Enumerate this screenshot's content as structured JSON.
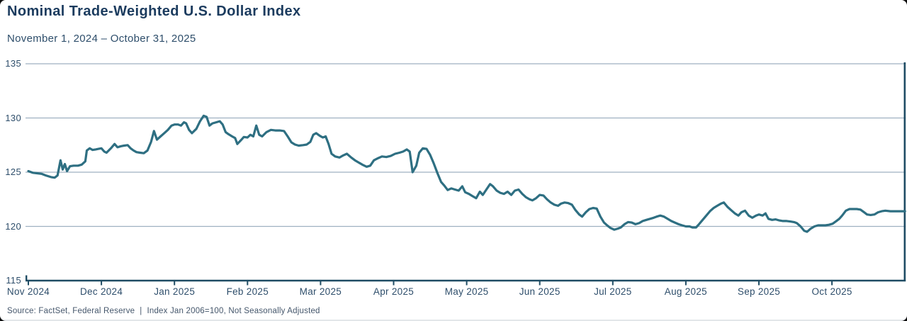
{
  "header": {
    "title": "Nominal Trade-Weighted U.S. Dollar Index",
    "subtitle": "November 1, 2024 – October 31, 2025"
  },
  "footer": {
    "source": "Source: FactSet, Federal Reserve",
    "separator": "|",
    "note": "Index Jan 2006=100, Not Seasonally Adjusted"
  },
  "colors": {
    "line": "#2E6F82",
    "title": "#1B3B5E",
    "axis": "#1F4C64",
    "grid": "#9FB1C1",
    "tick": "#2E4E6B"
  },
  "chart_data": {
    "type": "line",
    "title": "Nominal Trade-Weighted U.S. Dollar Index",
    "subtitle": "November 1, 2024 – October 31, 2025",
    "x_tick_labels": [
      "Nov 2024",
      "Dec 2024",
      "Jan 2025",
      "Feb 2025",
      "Mar 2025",
      "Apr 2025",
      "May 2025",
      "Jun 2025",
      "Jul 2025",
      "Aug 2025",
      "Sep 2025",
      "Oct 2025"
    ],
    "y_ticks": [
      115,
      120,
      125,
      130,
      135
    ],
    "y_axis_baseline": 115,
    "ylim": [
      115,
      135
    ],
    "x_unit": "months since Nov 1, 2024 (0 = Nov 1 2024, 12 = Oct 31 2025)",
    "xlim": [
      0,
      12
    ],
    "grid": "horizontal",
    "legend": "none",
    "series": [
      {
        "name": "Nominal Trade-Weighted U.S. Dollar Index",
        "points": [
          [
            0.0,
            125.1
          ],
          [
            0.06,
            124.95
          ],
          [
            0.12,
            124.9
          ],
          [
            0.18,
            124.85
          ],
          [
            0.24,
            124.7
          ],
          [
            0.31,
            124.55
          ],
          [
            0.36,
            124.5
          ],
          [
            0.4,
            124.7
          ],
          [
            0.44,
            126.1
          ],
          [
            0.47,
            125.25
          ],
          [
            0.5,
            125.75
          ],
          [
            0.53,
            125.1
          ],
          [
            0.57,
            125.55
          ],
          [
            0.62,
            125.6
          ],
          [
            0.68,
            125.6
          ],
          [
            0.73,
            125.7
          ],
          [
            0.78,
            126.0
          ],
          [
            0.8,
            127.0
          ],
          [
            0.84,
            127.2
          ],
          [
            0.88,
            127.05
          ],
          [
            0.92,
            127.1
          ],
          [
            0.96,
            127.15
          ],
          [
            1.0,
            127.2
          ],
          [
            1.04,
            126.9
          ],
          [
            1.07,
            126.8
          ],
          [
            1.1,
            127.0
          ],
          [
            1.13,
            127.2
          ],
          [
            1.18,
            127.6
          ],
          [
            1.22,
            127.3
          ],
          [
            1.27,
            127.4
          ],
          [
            1.31,
            127.45
          ],
          [
            1.36,
            127.5
          ],
          [
            1.4,
            127.2
          ],
          [
            1.44,
            127.0
          ],
          [
            1.48,
            126.85
          ],
          [
            1.53,
            126.8
          ],
          [
            1.58,
            126.75
          ],
          [
            1.63,
            127.0
          ],
          [
            1.68,
            127.8
          ],
          [
            1.72,
            128.8
          ],
          [
            1.76,
            128.0
          ],
          [
            1.81,
            128.3
          ],
          [
            1.86,
            128.6
          ],
          [
            1.91,
            128.9
          ],
          [
            1.96,
            129.3
          ],
          [
            2.0,
            129.4
          ],
          [
            2.05,
            129.4
          ],
          [
            2.09,
            129.3
          ],
          [
            2.13,
            129.6
          ],
          [
            2.16,
            129.5
          ],
          [
            2.2,
            128.9
          ],
          [
            2.24,
            128.6
          ],
          [
            2.3,
            129.0
          ],
          [
            2.35,
            129.7
          ],
          [
            2.4,
            130.2
          ],
          [
            2.44,
            130.1
          ],
          [
            2.48,
            129.3
          ],
          [
            2.52,
            129.5
          ],
          [
            2.57,
            129.6
          ],
          [
            2.62,
            129.7
          ],
          [
            2.66,
            129.4
          ],
          [
            2.7,
            128.7
          ],
          [
            2.74,
            128.5
          ],
          [
            2.79,
            128.3
          ],
          [
            2.83,
            128.15
          ],
          [
            2.86,
            127.6
          ],
          [
            2.91,
            127.95
          ],
          [
            2.95,
            128.25
          ],
          [
            3.0,
            128.2
          ],
          [
            3.04,
            128.45
          ],
          [
            3.08,
            128.3
          ],
          [
            3.12,
            129.3
          ],
          [
            3.16,
            128.45
          ],
          [
            3.2,
            128.3
          ],
          [
            3.26,
            128.7
          ],
          [
            3.32,
            128.9
          ],
          [
            3.38,
            128.85
          ],
          [
            3.44,
            128.85
          ],
          [
            3.5,
            128.8
          ],
          [
            3.55,
            128.3
          ],
          [
            3.6,
            127.75
          ],
          [
            3.65,
            127.55
          ],
          [
            3.7,
            127.45
          ],
          [
            3.76,
            127.5
          ],
          [
            3.81,
            127.55
          ],
          [
            3.86,
            127.8
          ],
          [
            3.9,
            128.45
          ],
          [
            3.94,
            128.6
          ],
          [
            3.99,
            128.35
          ],
          [
            4.03,
            128.2
          ],
          [
            4.07,
            128.3
          ],
          [
            4.11,
            127.6
          ],
          [
            4.15,
            126.7
          ],
          [
            4.2,
            126.45
          ],
          [
            4.26,
            126.35
          ],
          [
            4.31,
            126.55
          ],
          [
            4.36,
            126.7
          ],
          [
            4.42,
            126.35
          ],
          [
            4.47,
            126.1
          ],
          [
            4.52,
            125.9
          ],
          [
            4.57,
            125.7
          ],
          [
            4.63,
            125.5
          ],
          [
            4.68,
            125.6
          ],
          [
            4.73,
            126.1
          ],
          [
            4.79,
            126.3
          ],
          [
            4.84,
            126.45
          ],
          [
            4.9,
            126.4
          ],
          [
            4.96,
            126.5
          ],
          [
            5.02,
            126.7
          ],
          [
            5.08,
            126.8
          ],
          [
            5.13,
            126.9
          ],
          [
            5.18,
            127.1
          ],
          [
            5.22,
            126.9
          ],
          [
            5.26,
            125.0
          ],
          [
            5.31,
            125.6
          ],
          [
            5.35,
            126.8
          ],
          [
            5.4,
            127.2
          ],
          [
            5.45,
            127.15
          ],
          [
            5.5,
            126.6
          ],
          [
            5.55,
            125.8
          ],
          [
            5.6,
            124.9
          ],
          [
            5.65,
            124.1
          ],
          [
            5.69,
            123.8
          ],
          [
            5.74,
            123.35
          ],
          [
            5.79,
            123.5
          ],
          [
            5.84,
            123.4
          ],
          [
            5.89,
            123.3
          ],
          [
            5.94,
            123.7
          ],
          [
            5.98,
            123.15
          ],
          [
            6.03,
            123.0
          ],
          [
            6.08,
            122.8
          ],
          [
            6.13,
            122.6
          ],
          [
            6.18,
            123.2
          ],
          [
            6.22,
            122.9
          ],
          [
            6.27,
            123.4
          ],
          [
            6.32,
            123.9
          ],
          [
            6.36,
            123.7
          ],
          [
            6.41,
            123.3
          ],
          [
            6.46,
            123.1
          ],
          [
            6.51,
            123.0
          ],
          [
            6.56,
            123.2
          ],
          [
            6.61,
            122.9
          ],
          [
            6.66,
            123.3
          ],
          [
            6.71,
            123.4
          ],
          [
            6.76,
            123.0
          ],
          [
            6.81,
            122.7
          ],
          [
            6.86,
            122.5
          ],
          [
            6.9,
            122.4
          ],
          [
            6.95,
            122.6
          ],
          [
            7.0,
            122.9
          ],
          [
            7.05,
            122.85
          ],
          [
            7.1,
            122.5
          ],
          [
            7.15,
            122.2
          ],
          [
            7.2,
            122.0
          ],
          [
            7.25,
            121.9
          ],
          [
            7.29,
            122.1
          ],
          [
            7.34,
            122.2
          ],
          [
            7.39,
            122.15
          ],
          [
            7.44,
            122.0
          ],
          [
            7.49,
            121.5
          ],
          [
            7.54,
            121.1
          ],
          [
            7.58,
            120.9
          ],
          [
            7.63,
            121.3
          ],
          [
            7.68,
            121.6
          ],
          [
            7.73,
            121.7
          ],
          [
            7.78,
            121.65
          ],
          [
            7.83,
            120.9
          ],
          [
            7.88,
            120.35
          ],
          [
            7.93,
            120.05
          ],
          [
            7.97,
            119.85
          ],
          [
            8.02,
            119.7
          ],
          [
            8.07,
            119.8
          ],
          [
            8.11,
            119.9
          ],
          [
            8.16,
            120.2
          ],
          [
            8.21,
            120.4
          ],
          [
            8.26,
            120.35
          ],
          [
            8.31,
            120.2
          ],
          [
            8.36,
            120.3
          ],
          [
            8.41,
            120.5
          ],
          [
            8.46,
            120.6
          ],
          [
            8.51,
            120.7
          ],
          [
            8.56,
            120.8
          ],
          [
            8.6,
            120.9
          ],
          [
            8.65,
            121.0
          ],
          [
            8.7,
            120.9
          ],
          [
            8.75,
            120.7
          ],
          [
            8.8,
            120.5
          ],
          [
            8.85,
            120.35
          ],
          [
            8.9,
            120.2
          ],
          [
            8.95,
            120.1
          ],
          [
            9.0,
            120.0
          ],
          [
            9.05,
            120.0
          ],
          [
            9.09,
            119.9
          ],
          [
            9.14,
            119.9
          ],
          [
            9.18,
            120.2
          ],
          [
            9.23,
            120.6
          ],
          [
            9.28,
            121.0
          ],
          [
            9.33,
            121.4
          ],
          [
            9.38,
            121.7
          ],
          [
            9.43,
            121.9
          ],
          [
            9.48,
            122.1
          ],
          [
            9.52,
            122.2
          ],
          [
            9.57,
            121.8
          ],
          [
            9.62,
            121.5
          ],
          [
            9.67,
            121.2
          ],
          [
            9.72,
            121.0
          ],
          [
            9.76,
            121.3
          ],
          [
            9.81,
            121.45
          ],
          [
            9.86,
            121.0
          ],
          [
            9.91,
            120.8
          ],
          [
            9.96,
            121.0
          ],
          [
            10.0,
            121.1
          ],
          [
            10.05,
            121.0
          ],
          [
            10.09,
            121.2
          ],
          [
            10.13,
            120.7
          ],
          [
            10.18,
            120.6
          ],
          [
            10.23,
            120.65
          ],
          [
            10.28,
            120.55
          ],
          [
            10.33,
            120.5
          ],
          [
            10.38,
            120.5
          ],
          [
            10.43,
            120.45
          ],
          [
            10.48,
            120.4
          ],
          [
            10.52,
            120.3
          ],
          [
            10.57,
            120.0
          ],
          [
            10.62,
            119.6
          ],
          [
            10.66,
            119.5
          ],
          [
            10.71,
            119.8
          ],
          [
            10.76,
            120.0
          ],
          [
            10.81,
            120.1
          ],
          [
            10.86,
            120.1
          ],
          [
            10.91,
            120.1
          ],
          [
            10.96,
            120.15
          ],
          [
            11.01,
            120.25
          ],
          [
            11.06,
            120.5
          ],
          [
            11.1,
            120.7
          ],
          [
            11.14,
            121.0
          ],
          [
            11.19,
            121.45
          ],
          [
            11.24,
            121.6
          ],
          [
            11.29,
            121.6
          ],
          [
            11.34,
            121.6
          ],
          [
            11.39,
            121.55
          ],
          [
            11.44,
            121.3
          ],
          [
            11.48,
            121.1
          ],
          [
            11.53,
            121.05
          ],
          [
            11.58,
            121.1
          ],
          [
            11.63,
            121.3
          ],
          [
            11.68,
            121.4
          ],
          [
            11.73,
            121.45
          ],
          [
            11.8,
            121.4
          ],
          [
            11.88,
            121.4
          ],
          [
            11.95,
            121.4
          ],
          [
            12.0,
            121.4
          ]
        ]
      }
    ]
  }
}
